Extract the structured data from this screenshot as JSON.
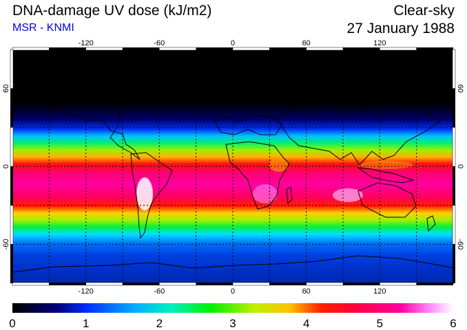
{
  "header": {
    "title": "DNA-damage UV dose (kJ/m2)",
    "subtitle": "MSR - KNMI",
    "mode": "Clear-sky",
    "date": "27 January 1988"
  },
  "map": {
    "projection": "equirectangular",
    "lon_range": [
      -180,
      180
    ],
    "lat_range": [
      -90,
      90
    ],
    "lon_ticks": [
      "-120",
      "-60",
      "0",
      "60",
      "120"
    ],
    "lat_ticks": [
      "60",
      "0",
      "-60"
    ],
    "grid": "dotted every 30 degrees",
    "colors": {
      "night": "#000000",
      "deep_blue": "#0020c0",
      "blue": "#0050ff",
      "cyan": "#00e0ff",
      "green": "#00f000",
      "yellow": "#ffe000",
      "red": "#ff0000",
      "magenta": "#ff0090",
      "white": "#ffffff"
    }
  },
  "colorbar": {
    "labels": [
      "0",
      "1",
      "2",
      "3",
      "4",
      "5",
      "6"
    ],
    "min": 0,
    "max": 6,
    "unit": "kJ/m2"
  }
}
